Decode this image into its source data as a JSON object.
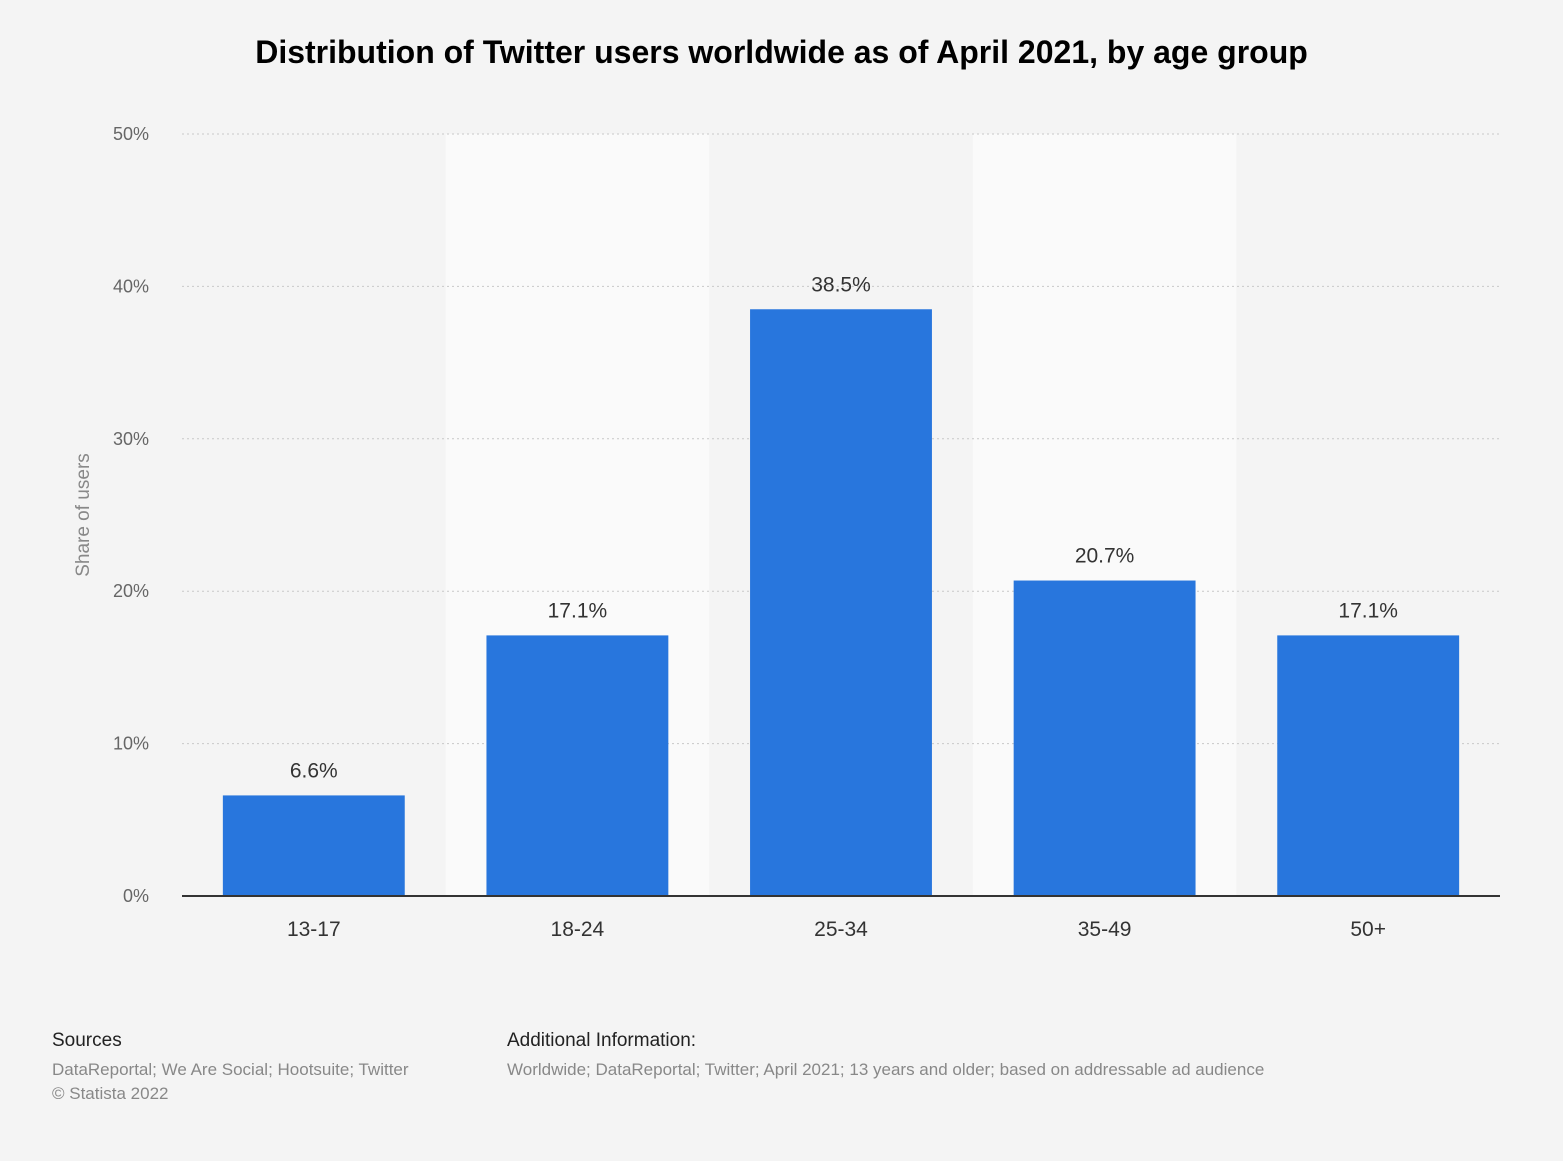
{
  "chart_data": {
    "type": "bar",
    "title": "Distribution of Twitter users worldwide as of April 2021, by age group",
    "xlabel": "",
    "ylabel": "Share of users",
    "categories": [
      "13-17",
      "18-24",
      "25-34",
      "35-49",
      "50+"
    ],
    "values": [
      6.6,
      17.1,
      38.5,
      20.7,
      17.1
    ],
    "value_labels": [
      "6.6%",
      "17.1%",
      "38.5%",
      "20.7%",
      "17.1%"
    ],
    "ylim": [
      0,
      50
    ],
    "yticks": [
      0,
      10,
      20,
      30,
      40,
      50
    ],
    "ytick_labels": [
      "0%",
      "10%",
      "20%",
      "30%",
      "40%",
      "50%"
    ],
    "grid": true,
    "bar_color": "#2876dd"
  },
  "footer": {
    "sources_heading": "Sources",
    "sources_text": "DataReportal; We Are Social; Hootsuite; Twitter",
    "copyright": "© Statista 2022",
    "additional_heading": "Additional Information:",
    "additional_text": "Worldwide; DataReportal; Twitter; April 2021; 13 years and older; based on addressable ad audience"
  }
}
